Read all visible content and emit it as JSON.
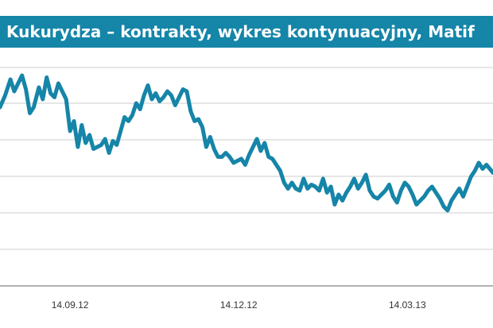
{
  "chart_data": {
    "type": "line",
    "title": "Kukurydza – kontrakty, wykres kontynuacyjny, Matif",
    "xlabel": "",
    "ylabel": "",
    "grid": true,
    "x_tick_labels": [
      "14.09.12",
      "14.12.12",
      "14.03.13"
    ],
    "x_tick_positions": [
      5.4,
      18.4,
      31.4
    ],
    "series": [
      {
        "color": "#1585a8",
        "x": [
          0,
          0.4,
          0.8,
          1.1,
          1.4,
          1.7,
          2.0,
          2.3,
          2.6,
          3.0,
          3.3,
          3.6,
          3.9,
          4.2,
          4.5,
          4.8,
          5.1,
          5.4,
          5.7,
          6.0,
          6.3,
          6.6,
          6.9,
          7.2,
          7.5,
          7.8,
          8.1,
          8.4,
          8.7,
          9.0,
          9.3,
          9.6,
          9.9,
          10.2,
          10.5,
          10.8,
          11.1,
          11.4,
          11.7,
          12.0,
          12.3,
          12.6,
          12.9,
          13.2,
          13.5,
          13.8,
          14.1,
          14.4,
          14.7,
          15.0,
          15.3,
          15.6,
          15.9,
          16.2,
          16.5,
          16.8,
          17.1,
          17.4,
          17.7,
          18.0,
          18.3,
          18.6,
          18.9,
          19.2,
          19.5,
          19.8,
          20.1,
          20.4,
          20.7,
          21.0,
          21.3,
          21.6,
          21.9,
          22.2,
          22.5,
          22.8,
          23.1,
          23.4,
          23.7,
          24.0,
          24.3,
          24.6,
          24.9,
          25.2,
          25.5,
          25.8,
          26.1,
          26.4,
          26.7,
          27.0,
          27.3,
          27.6,
          27.9,
          28.2,
          28.5,
          28.8,
          29.1,
          29.4,
          29.7,
          30.0,
          30.3,
          30.6,
          30.9,
          31.2,
          31.5,
          31.8,
          32.1,
          32.4,
          32.7,
          33.0,
          33.3,
          33.6,
          33.9,
          34.2,
          34.5,
          34.8,
          35.1,
          35.4,
          35.7,
          36.0,
          36.3,
          36.6,
          36.9,
          37.2,
          37.5,
          38.0
        ],
        "values": [
          80,
          86,
          94,
          88,
          92,
          96,
          89,
          77,
          80,
          90,
          84,
          95,
          87,
          85,
          92,
          88,
          84,
          68,
          73,
          60,
          71,
          62,
          66,
          59,
          60,
          61,
          64,
          57,
          63,
          61,
          68,
          75,
          73,
          76,
          82,
          79,
          86,
          91,
          84,
          87,
          83,
          85,
          88,
          86,
          81,
          85,
          89,
          88,
          78,
          73,
          74,
          70,
          60,
          65,
          59,
          55,
          55,
          57,
          55,
          52,
          53,
          54,
          51,
          56,
          60,
          64,
          58,
          62,
          55,
          54,
          51,
          48,
          42,
          39,
          42,
          39,
          38,
          44,
          39,
          41,
          40,
          38,
          44,
          37,
          40,
          31,
          36,
          33,
          37,
          40,
          44,
          39,
          42,
          46,
          38,
          35,
          34,
          36,
          38,
          41,
          35,
          32,
          38,
          42,
          40,
          36,
          31,
          33,
          35,
          38,
          40,
          37,
          34,
          30,
          28,
          33,
          36,
          39,
          35,
          40,
          45,
          48,
          52,
          49,
          51,
          47
        ],
        "ylim": [
          -10,
          100
        ]
      }
    ]
  }
}
